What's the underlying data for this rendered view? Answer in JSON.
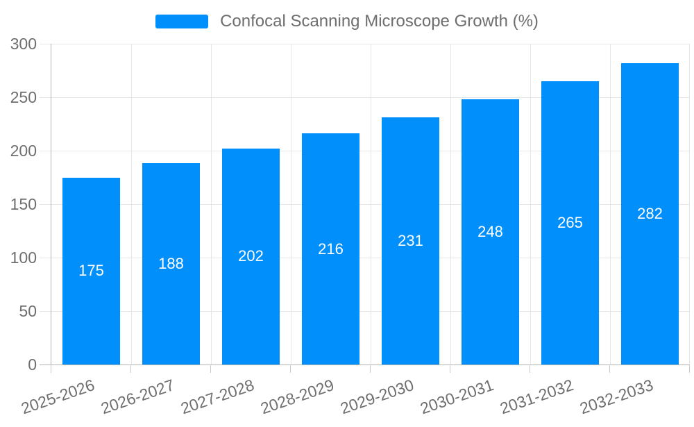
{
  "legend": {
    "label": "Confocal Scanning Microscope Growth (%)",
    "marker_color": "#008FFB"
  },
  "chart_data": {
    "type": "bar",
    "title": "",
    "series_name": "Confocal Scanning Microscope Growth (%)",
    "categories": [
      "2025-2026",
      "2026-2027",
      "2027-2028",
      "2028-2029",
      "2029-2030",
      "2030-2031",
      "2031-2032",
      "2032-2033"
    ],
    "values": [
      175,
      188,
      202,
      216,
      231,
      248,
      265,
      282
    ],
    "xlabel": "",
    "ylabel": "",
    "ylim": [
      0,
      300
    ],
    "yticks": [
      0,
      50,
      100,
      150,
      200,
      250,
      300
    ],
    "grid": true,
    "legend_position": "top",
    "bar_color": "#008FFB",
    "value_label_color": "#ffffff",
    "axis_label_color": "#6f6f6f",
    "grid_color": "#e6e6e6",
    "axis_line_color": "#b3b3b3"
  }
}
